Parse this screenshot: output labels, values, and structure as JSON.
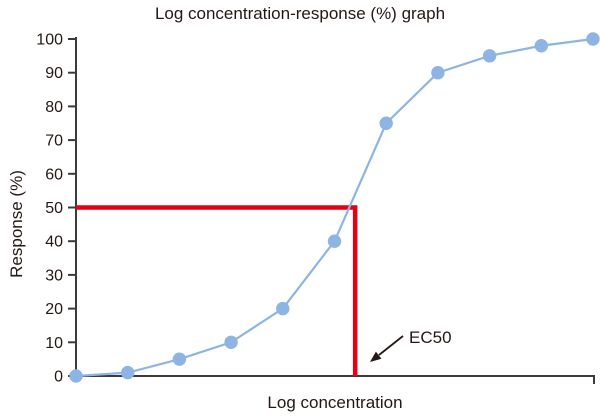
{
  "colors": {
    "background": "#ffffff",
    "text": "#231815",
    "axis": "#3e3a39",
    "curve": "#8eb4e3",
    "ec50_line": "#e60012"
  },
  "chart_data": {
    "type": "line",
    "title": "Log concentration-response (%) graph",
    "xlabel": "Log concentration",
    "ylabel": "Response (%)",
    "x": [
      0,
      1,
      2,
      3,
      4,
      5,
      6,
      7,
      8,
      9,
      10
    ],
    "x_tick_labels": [],
    "series": [
      {
        "name": "Response (%)",
        "color": "#8eb4e3",
        "marker": "circle",
        "values": [
          0,
          1,
          5,
          10,
          20,
          40,
          75,
          90,
          95,
          98,
          100
        ]
      }
    ],
    "ylim": [
      0,
      100
    ],
    "yticks": [
      0,
      10,
      20,
      30,
      40,
      50,
      60,
      70,
      80,
      90,
      100
    ],
    "grid": false,
    "legend": "none",
    "annotations": {
      "ec50": {
        "label": "EC50",
        "response_pct": 50,
        "x_index": 5.4,
        "line_color": "#e60012"
      }
    }
  }
}
